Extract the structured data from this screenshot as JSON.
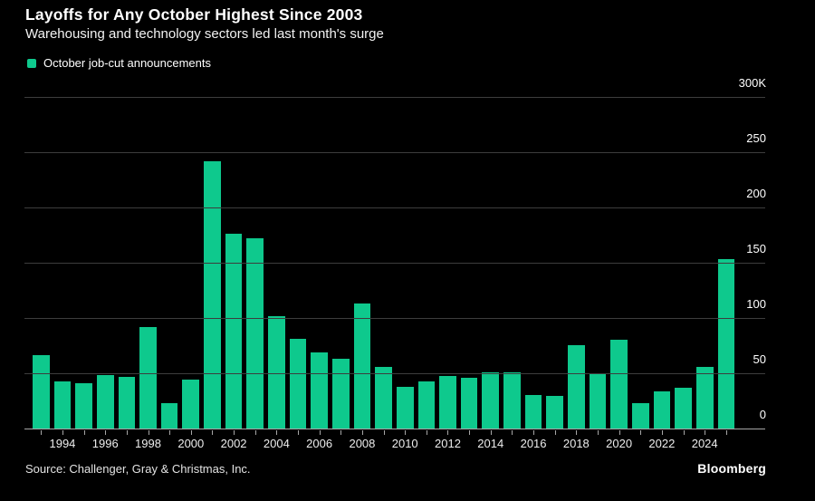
{
  "header": {
    "title": "Layoffs for Any October Highest Since 2003",
    "subtitle": "Warehousing and technology sectors led last month's surge"
  },
  "legend": {
    "label": "October job-cut announcements"
  },
  "footer": {
    "source": "Source: Challenger, Gray & Christmas, Inc.",
    "brand": "Bloomberg"
  },
  "colors": {
    "background": "#000000",
    "bar": "#0ec98d",
    "gridline": "#3d3d3d",
    "axis": "#a6a6a6",
    "text": "#ffffff"
  },
  "chart_data": {
    "type": "bar",
    "title": "Layoffs for Any October Highest Since 2003",
    "subtitle": "Warehousing and technology sectors led last month's surge",
    "series_name": "October job-cut announcements",
    "unit": "thousands of announced job cuts",
    "categories": [
      1993,
      1994,
      1995,
      1996,
      1997,
      1998,
      1999,
      2000,
      2001,
      2002,
      2003,
      2004,
      2005,
      2006,
      2007,
      2008,
      2009,
      2010,
      2011,
      2012,
      2013,
      2014,
      2015,
      2016,
      2017,
      2018,
      2019,
      2020,
      2021,
      2022,
      2023,
      2024,
      2025
    ],
    "values": [
      66,
      43,
      41,
      48,
      47,
      91.5,
      23,
      44,
      242.2,
      176,
      171.9,
      101.8,
      81.3,
      69,
      63.1,
      112.9,
      55.7,
      38,
      42.8,
      47.7,
      45.7,
      51.2,
      50.5,
      30.7,
      29.8,
      75.6,
      50.3,
      80.7,
      22.8,
      33.8,
      36.8,
      55.6,
      153.1
    ],
    "xlabel": "",
    "ylabel": "",
    "ylim": [
      0,
      300
    ],
    "yticks": [
      {
        "value": 300,
        "label": "300K"
      },
      {
        "value": 250,
        "label": "250"
      },
      {
        "value": 200,
        "label": "200"
      },
      {
        "value": 150,
        "label": "150"
      },
      {
        "value": 100,
        "label": "100"
      },
      {
        "value": 50,
        "label": "50"
      },
      {
        "value": 0,
        "label": "0"
      }
    ],
    "xtick_labels": [
      "1994",
      "1996",
      "1998",
      "2000",
      "2002",
      "2004",
      "2006",
      "2008",
      "2010",
      "2012",
      "2014",
      "2016",
      "2018",
      "2020",
      "2022",
      "2024"
    ],
    "grid": "horizontal",
    "legend_position": "top-left",
    "yaxis_side": "right"
  }
}
